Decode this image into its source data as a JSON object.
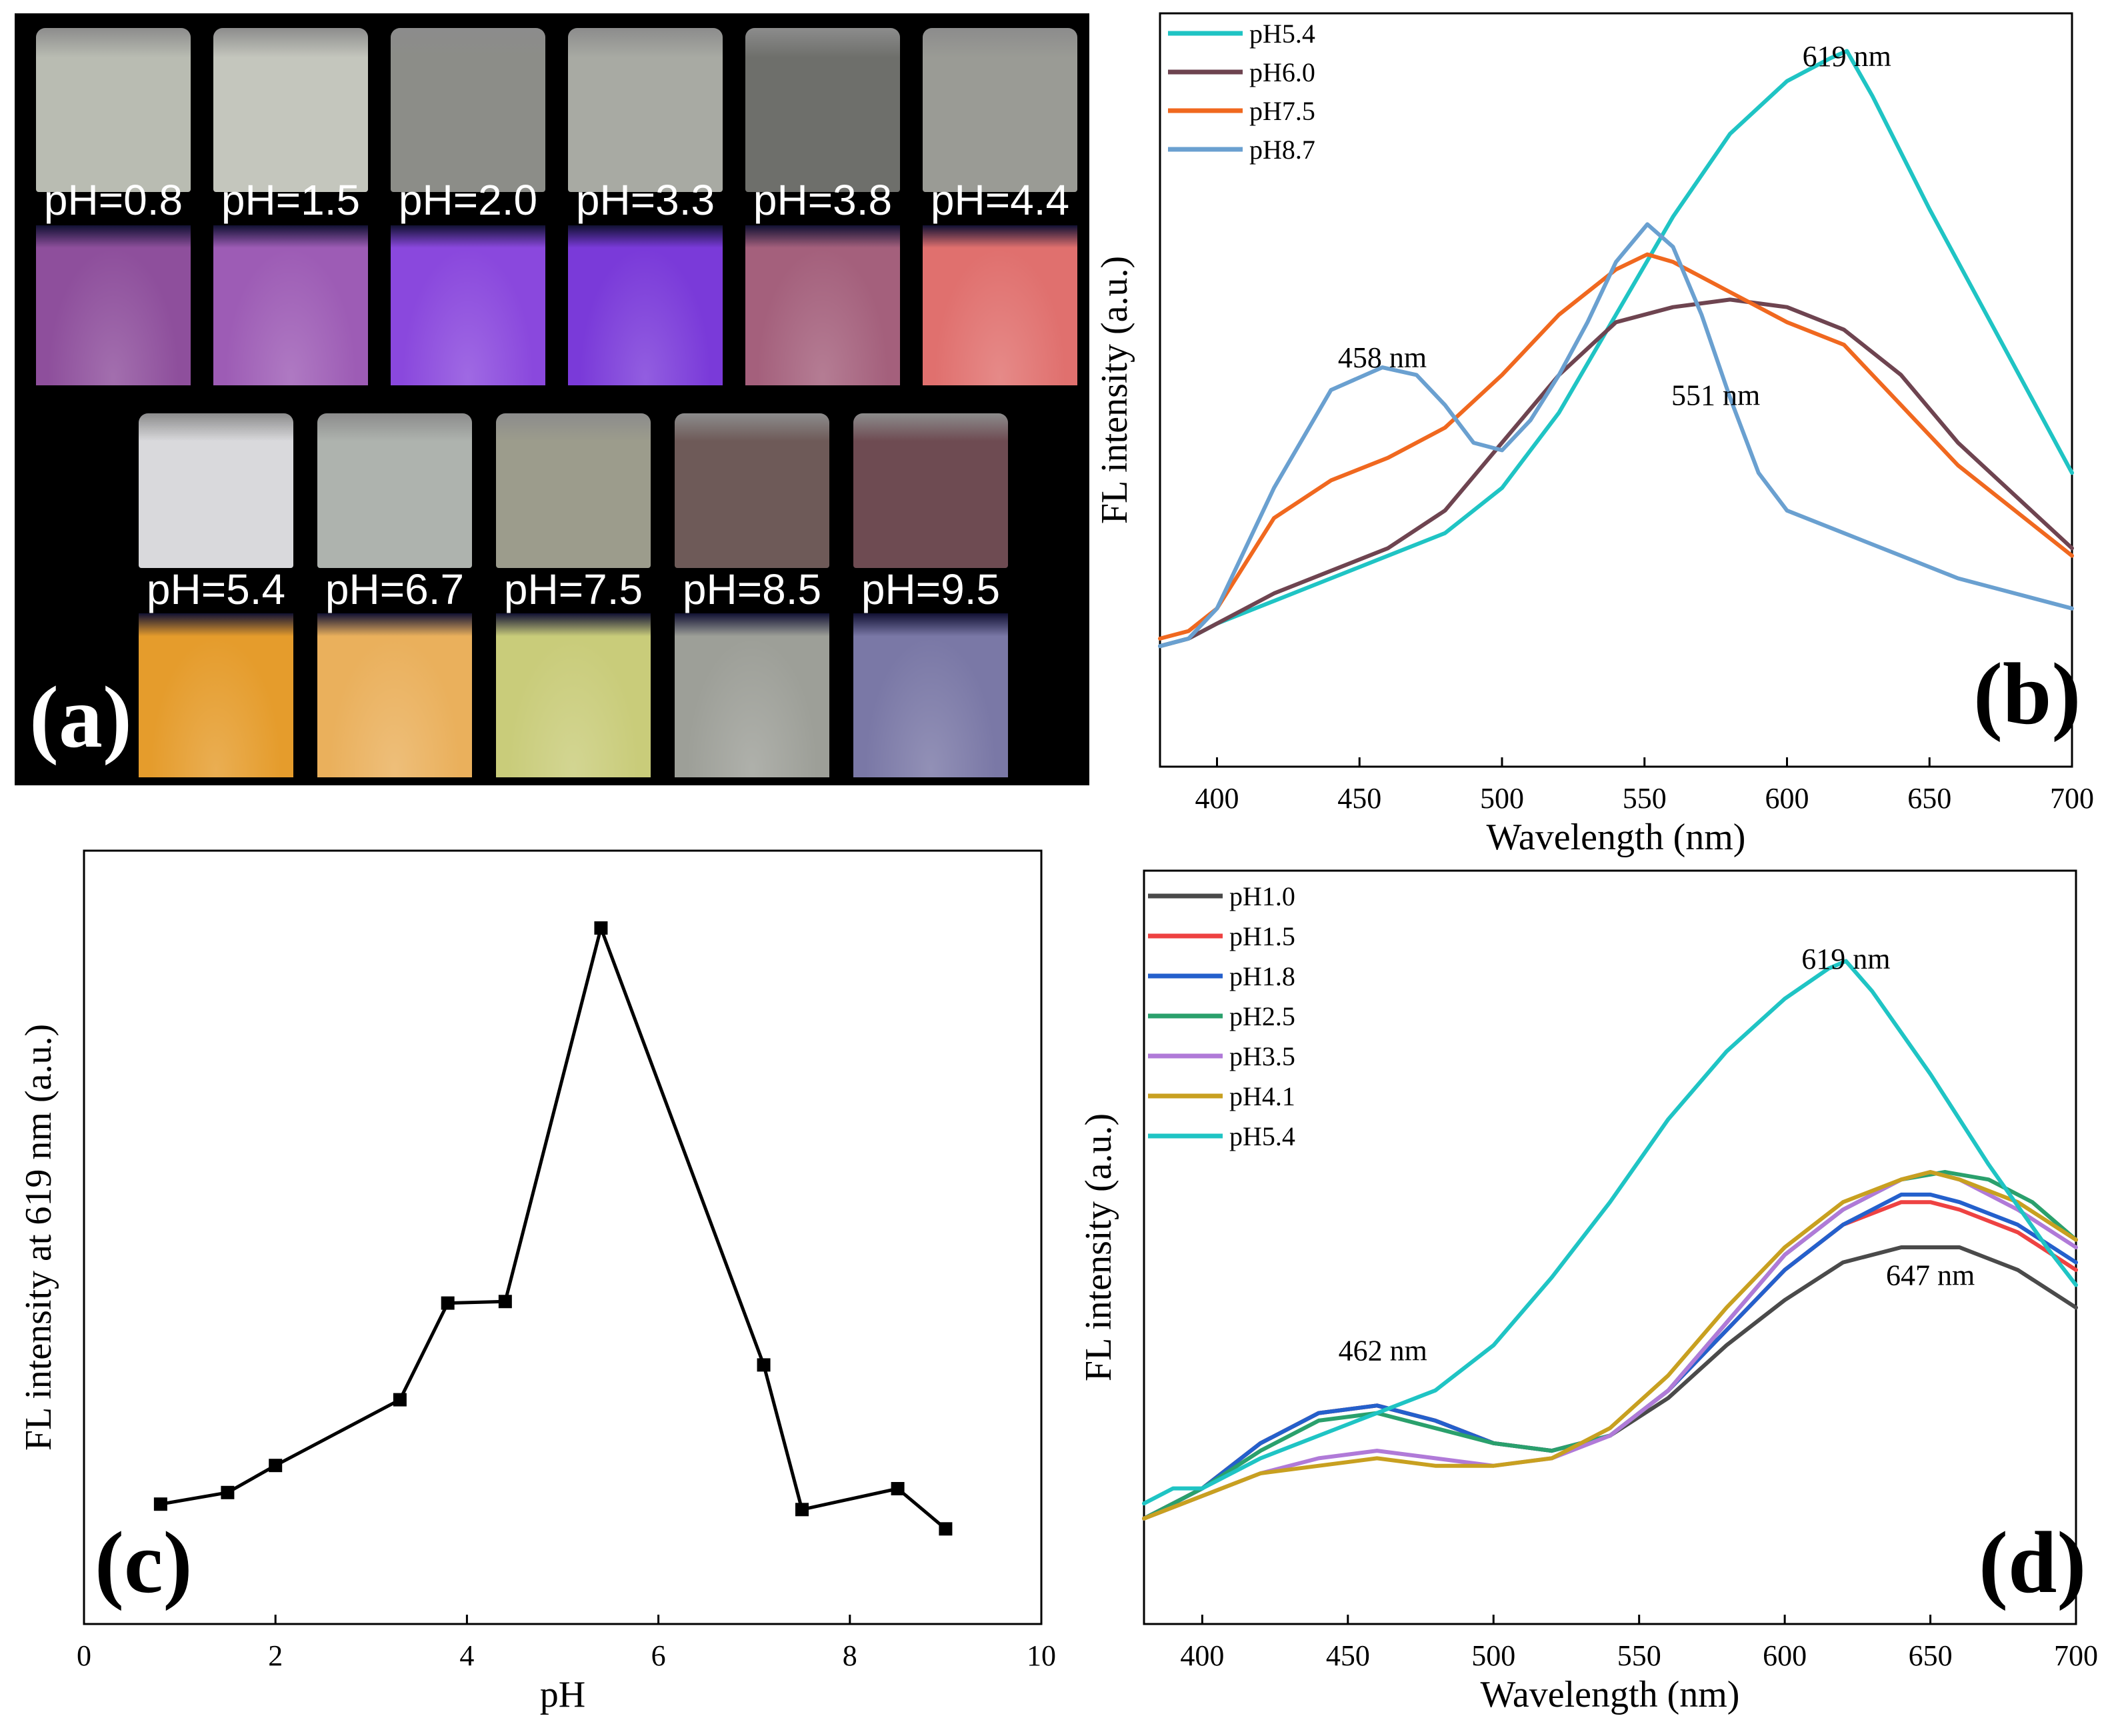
{
  "panel_a": {
    "letter": "(a)",
    "vials_top": [
      {
        "label": "pH=0.8",
        "day": "#b9bcb2",
        "uv": "#8e4f9c"
      },
      {
        "label": "pH=1.5",
        "day": "#c4c6bd",
        "uv": "#9d5cb5"
      },
      {
        "label": "pH=2.0",
        "day": "#8c8d88",
        "uv": "#8a48dd"
      },
      {
        "label": "pH=3.3",
        "day": "#a8aaa3",
        "uv": "#7a3ad9"
      },
      {
        "label": "pH=3.8",
        "day": "#6e6f6b",
        "uv": "#a4607c"
      },
      {
        "label": "pH=4.4",
        "day": "#9a9b95",
        "uv": "#e0706e"
      }
    ],
    "vials_bottom": [
      {
        "label": "pH=5.4",
        "day": "#d9d9dc",
        "uv": "#e59c2c"
      },
      {
        "label": "pH=6.7",
        "day": "#aeb3ae",
        "uv": "#eab05c"
      },
      {
        "label": "pH=7.5",
        "day": "#9c9c8c",
        "uv": "#c9cc7a"
      },
      {
        "label": "pH=8.5",
        "day": "#6e5a58",
        "uv": "#9d9f98"
      },
      {
        "label": "pH=9.5",
        "day": "#6e4b52",
        "uv": "#7a78a6"
      }
    ]
  },
  "chart_data": [
    {
      "panel": "(b)",
      "type": "line",
      "xlabel": "Wavelength (nm)",
      "ylabel": "FL intensity (a.u.)",
      "xlim": [
        380,
        700
      ],
      "ylim": [
        0,
        100
      ],
      "xticks": [
        "400",
        "450",
        "500",
        "550",
        "600",
        "650",
        "700"
      ],
      "legend_position": "top-left",
      "annotations": [
        {
          "text": "619 nm",
          "x": 621,
          "y": 93
        },
        {
          "text": "458 nm",
          "x": 458,
          "y": 53
        },
        {
          "text": "551 nm",
          "x": 575,
          "y": 48
        }
      ],
      "series": [
        {
          "name": "pH5.4",
          "color": "#1fc4c4",
          "x": [
            380,
            390,
            400,
            420,
            440,
            460,
            480,
            500,
            520,
            540,
            560,
            580,
            600,
            615,
            621,
            630,
            650,
            670,
            690,
            700
          ],
          "y": [
            16,
            17,
            19,
            22,
            25,
            28,
            31,
            37,
            47,
            60,
            73,
            84,
            91,
            94,
            95,
            89,
            74,
            60,
            46,
            39
          ]
        },
        {
          "name": "pH6.0",
          "color": "#6e4450",
          "x": [
            380,
            390,
            400,
            420,
            440,
            460,
            480,
            500,
            520,
            540,
            560,
            580,
            600,
            620,
            640,
            660,
            680,
            700
          ],
          "y": [
            16,
            17,
            19,
            23,
            26,
            29,
            34,
            43,
            52,
            59,
            61,
            62,
            61,
            58,
            52,
            43,
            36,
            29
          ]
        },
        {
          "name": "pH7.5",
          "color": "#f0681f",
          "x": [
            380,
            390,
            400,
            420,
            440,
            460,
            480,
            500,
            520,
            540,
            551,
            560,
            580,
            600,
            620,
            640,
            660,
            680,
            700
          ],
          "y": [
            17,
            18,
            21,
            33,
            38,
            41,
            45,
            52,
            60,
            66,
            68,
            67,
            63,
            59,
            56,
            48,
            40,
            34,
            28
          ]
        },
        {
          "name": "pH8.7",
          "color": "#6aa0d0",
          "x": [
            380,
            390,
            400,
            420,
            440,
            458,
            470,
            480,
            490,
            500,
            510,
            520,
            530,
            540,
            551,
            560,
            570,
            580,
            590,
            600,
            620,
            640,
            660,
            680,
            700
          ],
          "y": [
            16,
            17,
            21,
            37,
            50,
            53,
            52,
            48,
            43,
            42,
            46,
            52,
            59,
            67,
            72,
            69,
            60,
            49,
            39,
            34,
            31,
            28,
            25,
            23,
            21
          ]
        }
      ]
    },
    {
      "panel": "(c)",
      "type": "line",
      "xlabel": "pH",
      "ylabel": "FL intensity at 619 nm (a.u.)",
      "xlim": [
        0,
        10
      ],
      "ylim": [
        0,
        100
      ],
      "xticks": [
        "0",
        "2",
        "4",
        "6",
        "8",
        "10"
      ],
      "series": [
        {
          "name": "FL intensity at 619 nm",
          "color": "#000000",
          "x": [
            0.8,
            1.5,
            2.0,
            3.3,
            3.8,
            4.4,
            5.4,
            7.1,
            7.5,
            8.5,
            9.0
          ],
          "y": [
            15.5,
            17,
            20.5,
            29,
            41.5,
            41.7,
            90,
            33.5,
            14.8,
            17.5,
            12.3
          ]
        }
      ]
    },
    {
      "panel": "(d)",
      "type": "line",
      "xlabel": "Wavelength (nm)",
      "ylabel": "FL intensity (a.u.)",
      "xlim": [
        380,
        700
      ],
      "ylim": [
        0,
        100
      ],
      "xticks": [
        "400",
        "450",
        "500",
        "550",
        "600",
        "650",
        "700"
      ],
      "legend_position": "top-left",
      "annotations": [
        {
          "text": "619 nm",
          "x": 621,
          "y": 87
        },
        {
          "text": "462 nm",
          "x": 462,
          "y": 35
        },
        {
          "text": "647 nm",
          "x": 650,
          "y": 45
        }
      ],
      "series": [
        {
          "name": "pH1.0",
          "color": "#4a4a4a",
          "x": [
            380,
            400,
            420,
            440,
            460,
            480,
            500,
            520,
            540,
            560,
            580,
            600,
            620,
            640,
            660,
            680,
            700
          ],
          "y": [
            14,
            18,
            24,
            28,
            29,
            27,
            24,
            23,
            25,
            30,
            37,
            43,
            48,
            50,
            50,
            47,
            42
          ]
        },
        {
          "name": "pH1.5",
          "color": "#ee4242",
          "x": [
            380,
            400,
            420,
            440,
            460,
            480,
            500,
            520,
            540,
            560,
            580,
            600,
            620,
            640,
            650,
            660,
            680,
            700
          ],
          "y": [
            14,
            18,
            24,
            28,
            29,
            27,
            24,
            23,
            25,
            31,
            39,
            47,
            53,
            56,
            56,
            55,
            52,
            47
          ]
        },
        {
          "name": "pH1.8",
          "color": "#2460cc",
          "x": [
            380,
            400,
            420,
            440,
            460,
            480,
            500,
            520,
            540,
            560,
            580,
            600,
            620,
            640,
            650,
            660,
            680,
            700
          ],
          "y": [
            14,
            18,
            24,
            28,
            29,
            27,
            24,
            23,
            25,
            31,
            39,
            47,
            53,
            57,
            57,
            56,
            53,
            48
          ]
        },
        {
          "name": "pH2.5",
          "color": "#2aa06c",
          "x": [
            380,
            400,
            420,
            440,
            460,
            480,
            500,
            520,
            540,
            560,
            580,
            600,
            620,
            640,
            655,
            670,
            685,
            700
          ],
          "y": [
            14,
            18,
            23,
            27,
            28,
            26,
            24,
            23,
            25,
            31,
            40,
            49,
            55,
            59,
            60,
            59,
            56,
            51
          ]
        },
        {
          "name": "pH3.5",
          "color": "#b07ad8",
          "x": [
            380,
            400,
            420,
            440,
            460,
            480,
            500,
            520,
            540,
            560,
            580,
            600,
            620,
            640,
            650,
            660,
            680,
            700
          ],
          "y": [
            14,
            17,
            20,
            22,
            23,
            22,
            21,
            22,
            25,
            31,
            40,
            49,
            55,
            59,
            60,
            59,
            55,
            50
          ]
        },
        {
          "name": "pH4.1",
          "color": "#c8a020",
          "x": [
            380,
            400,
            420,
            440,
            460,
            480,
            500,
            520,
            540,
            560,
            580,
            600,
            620,
            640,
            650,
            660,
            680,
            700
          ],
          "y": [
            14,
            17,
            20,
            21,
            22,
            21,
            21,
            22,
            26,
            33,
            42,
            50,
            56,
            59,
            60,
            59,
            56,
            51
          ]
        },
        {
          "name": "pH5.4",
          "color": "#1fc4c4",
          "x": [
            380,
            390,
            400,
            420,
            440,
            460,
            480,
            500,
            520,
            540,
            560,
            580,
            600,
            615,
            621,
            630,
            650,
            670,
            690,
            700
          ],
          "y": [
            16,
            18,
            18,
            22,
            25,
            28,
            31,
            37,
            46,
            56,
            67,
            76,
            83,
            87,
            88,
            84,
            73,
            61,
            50,
            45
          ]
        }
      ]
    }
  ]
}
